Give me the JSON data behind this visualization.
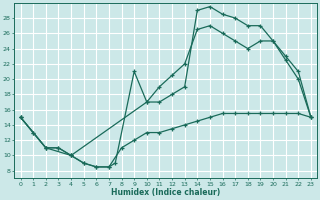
{
  "xlabel": "Humidex (Indice chaleur)",
  "bg_color": "#cce8e8",
  "grid_color": "#ffffff",
  "line_color": "#1a6b5a",
  "xlim": [
    -0.5,
    23.5
  ],
  "ylim": [
    7,
    30
  ],
  "xticks": [
    0,
    1,
    2,
    3,
    4,
    5,
    6,
    7,
    8,
    9,
    10,
    11,
    12,
    13,
    14,
    15,
    16,
    17,
    18,
    19,
    20,
    21,
    22,
    23
  ],
  "yticks": [
    8,
    10,
    12,
    14,
    16,
    18,
    20,
    22,
    24,
    26,
    28
  ],
  "curve1_x": [
    0,
    1,
    2,
    3,
    4,
    5,
    6,
    7,
    7.5,
    9,
    10,
    11,
    12,
    13,
    14,
    15,
    16,
    17,
    18,
    19,
    20,
    21,
    22,
    23
  ],
  "curve1_y": [
    15,
    13,
    11,
    11,
    10,
    9,
    8.5,
    8.5,
    9,
    21,
    17,
    17,
    18,
    19,
    29,
    29.5,
    28.5,
    28,
    27,
    27,
    25,
    22.5,
    20,
    15
  ],
  "curve2_x": [
    0,
    1,
    2,
    3,
    4,
    5,
    6,
    7,
    8,
    9,
    10,
    11,
    12,
    13,
    14,
    15,
    16,
    17,
    18,
    19,
    20,
    21,
    22,
    23
  ],
  "curve2_y": [
    15,
    13,
    11,
    11,
    10,
    9,
    8.5,
    8.5,
    11,
    12,
    13,
    13,
    13.5,
    14,
    14.5,
    15,
    15.5,
    15.5,
    15.5,
    15.5,
    15.5,
    15.5,
    15.5,
    15
  ],
  "curve3_x": [
    0,
    2,
    4,
    10,
    11,
    12,
    13,
    14,
    15,
    16,
    17,
    18,
    19,
    20,
    21,
    22,
    23
  ],
  "curve3_y": [
    15,
    11,
    10,
    17,
    19,
    20.5,
    22,
    26.5,
    27,
    26,
    25,
    24,
    25,
    25,
    23,
    21,
    15
  ]
}
